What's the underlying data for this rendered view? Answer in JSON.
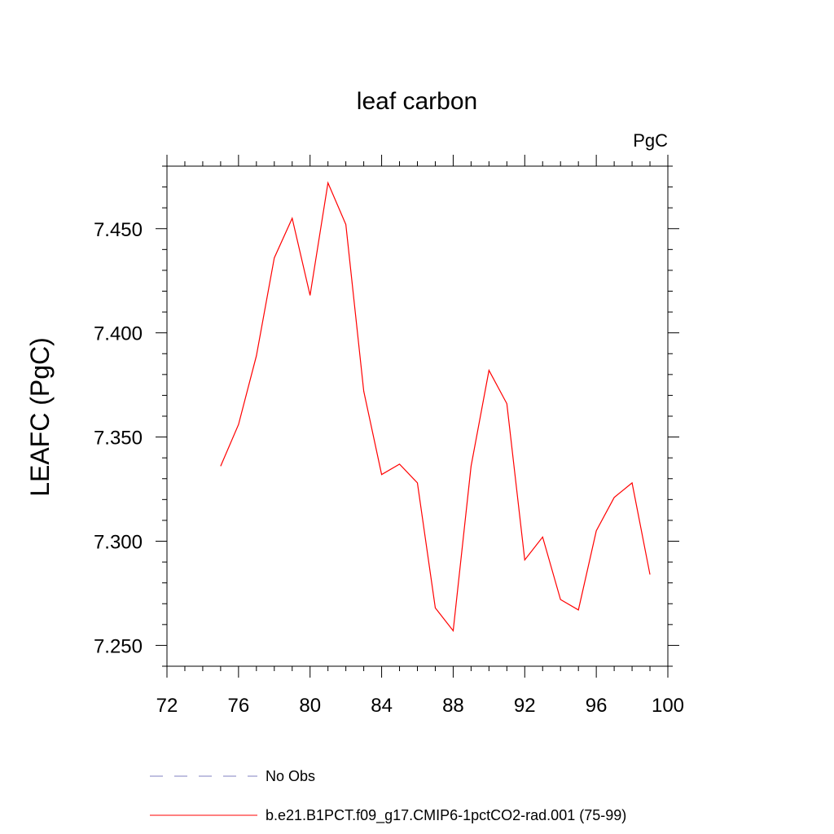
{
  "chart_data": {
    "type": "line",
    "title": "leaf carbon",
    "units_label": "PgC",
    "ylabel": "LEAFC  (PgC)",
    "xlabel": "",
    "xlim": [
      72,
      100
    ],
    "ylim": [
      7.24,
      7.48
    ],
    "x_ticks": [
      "72",
      "76",
      "80",
      "84",
      "88",
      "92",
      "96",
      "100"
    ],
    "y_ticks": [
      "7.250",
      "7.300",
      "7.350",
      "7.400",
      "7.450"
    ],
    "grid": false,
    "legend_position": "bottom",
    "series": [
      {
        "name": "No Obs",
        "color": "#8080c0",
        "style": "dashed",
        "x": [],
        "y": []
      },
      {
        "name": "b.e21.B1PCT.f09_g17.CMIP6-1pctCO2-rad.001 (75-99)",
        "color": "#ff0000",
        "style": "solid",
        "x": [
          75,
          76,
          77,
          78,
          79,
          80,
          81,
          82,
          83,
          84,
          85,
          86,
          87,
          88,
          89,
          90,
          91,
          92,
          93,
          94,
          95,
          96,
          97,
          98,
          99
        ],
        "y": [
          7.336,
          7.356,
          7.389,
          7.436,
          7.455,
          7.418,
          7.472,
          7.452,
          7.372,
          7.332,
          7.337,
          7.328,
          7.268,
          7.257,
          7.336,
          7.382,
          7.366,
          7.291,
          7.302,
          7.272,
          7.267,
          7.305,
          7.321,
          7.328,
          7.284
        ]
      }
    ]
  }
}
